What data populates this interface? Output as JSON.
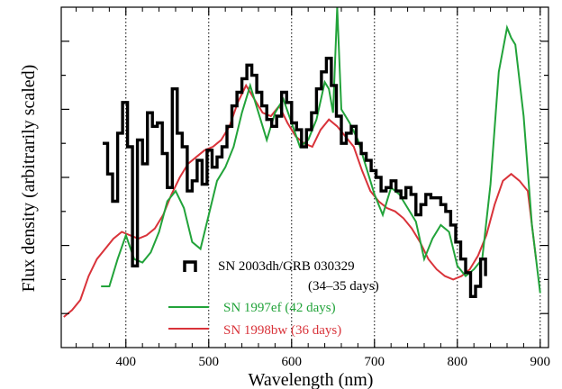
{
  "chart_data": {
    "type": "line",
    "title": "",
    "xlabel": "Wavelength (nm)",
    "ylabel": "Flux density (arbitrarily scaled)",
    "xlim": [
      322,
      910
    ],
    "ylim": [
      0,
      10
    ],
    "x_ticks": [
      400,
      500,
      600,
      700,
      800,
      900
    ],
    "x_tick_labels": [
      "400",
      "500",
      "600",
      "700",
      "800",
      "900"
    ],
    "y_tick_labels_shown": false,
    "grid": "vertical dotted lines at 400, 500, 600, 700, 800, 900",
    "legend_position": "bottom-center",
    "series": [
      {
        "name": "SN 2003dh/GRB 030329",
        "subtitle": "(34–35 days)",
        "color": "#000000",
        "style": "thick",
        "x": [
          372,
          378,
          384,
          390,
          396,
          402,
          408,
          414,
          420,
          426,
          432,
          438,
          444,
          450,
          456,
          462,
          468,
          474,
          480,
          486,
          492,
          498,
          504,
          510,
          516,
          522,
          528,
          534,
          540,
          546,
          552,
          558,
          564,
          570,
          576,
          582,
          588,
          594,
          600,
          606,
          612,
          618,
          624,
          630,
          636,
          642,
          648,
          654,
          660,
          666,
          672,
          678,
          684,
          690,
          696,
          702,
          708,
          714,
          720,
          726,
          732,
          738,
          744,
          750,
          756,
          762,
          768,
          774,
          780,
          786,
          792,
          798,
          804,
          810,
          816,
          822,
          828,
          834
        ],
        "y": [
          6.0,
          5.1,
          4.3,
          6.3,
          7.2,
          5.9,
          2.4,
          6.1,
          5.4,
          6.9,
          6.5,
          6.6,
          5.7,
          4.7,
          7.6,
          6.3,
          5.9,
          4.6,
          4.9,
          5.5,
          4.8,
          5.8,
          5.3,
          5.6,
          5.9,
          6.5,
          7.1,
          7.5,
          7.9,
          8.3,
          8.0,
          7.5,
          7.1,
          6.7,
          6.5,
          6.8,
          7.5,
          7.2,
          6.6,
          6.4,
          5.9,
          6.4,
          6.9,
          7.6,
          8.1,
          8.5,
          7.7,
          6.8,
          6.0,
          6.3,
          6.5,
          6.0,
          5.7,
          5.5,
          5.2,
          5.0,
          4.6,
          4.7,
          4.9,
          4.6,
          4.4,
          4.7,
          4.5,
          3.9,
          4.2,
          4.5,
          4.4,
          4.4,
          4.2,
          4.0,
          3.6,
          3.1,
          2.6,
          2.2,
          1.5,
          1.8,
          2.6,
          2.1
        ]
      },
      {
        "name": "SN 1997ef (42 days)",
        "color": "#22a33a",
        "x": [
          370,
          380,
          390,
          400,
          410,
          420,
          430,
          440,
          450,
          460,
          470,
          480,
          490,
          500,
          510,
          520,
          530,
          540,
          550,
          560,
          570,
          580,
          590,
          600,
          610,
          620,
          630,
          640,
          645,
          650,
          655,
          660,
          670,
          680,
          690,
          700,
          710,
          720,
          730,
          740,
          750,
          760,
          770,
          780,
          790,
          800,
          810,
          820,
          830,
          840,
          850,
          860,
          865,
          870,
          880,
          890,
          900
        ],
        "y": [
          1.8,
          1.8,
          2.6,
          3.3,
          2.6,
          2.5,
          2.8,
          3.4,
          4.3,
          4.6,
          4.1,
          3.1,
          2.9,
          3.9,
          4.9,
          5.3,
          5.9,
          6.9,
          7.7,
          6.9,
          6.1,
          6.9,
          7.3,
          6.6,
          5.9,
          6.1,
          6.7,
          7.8,
          7.6,
          6.9,
          10.0,
          7.0,
          6.6,
          6.1,
          5.3,
          4.5,
          3.9,
          4.7,
          4.5,
          4.1,
          3.7,
          2.6,
          3.2,
          3.6,
          3.4,
          2.4,
          2.1,
          2.3,
          2.6,
          4.8,
          8.1,
          9.4,
          9.1,
          8.9,
          6.8,
          3.6,
          1.6
        ]
      },
      {
        "name": "SN 1998bw (36 days)",
        "color": "#d9333a",
        "x": [
          325,
          335,
          345,
          355,
          365,
          375,
          385,
          395,
          405,
          415,
          425,
          435,
          445,
          455,
          465,
          475,
          485,
          495,
          505,
          515,
          525,
          535,
          545,
          555,
          565,
          575,
          585,
          595,
          605,
          615,
          625,
          635,
          645,
          655,
          665,
          675,
          685,
          695,
          705,
          715,
          725,
          735,
          745,
          755,
          765,
          775,
          785,
          795,
          805,
          815,
          825,
          835,
          845,
          855,
          865,
          875,
          885,
          895
        ],
        "y": [
          0.9,
          1.1,
          1.4,
          2.1,
          2.6,
          2.9,
          3.2,
          3.4,
          3.3,
          3.2,
          3.3,
          3.5,
          3.9,
          4.5,
          5.0,
          5.4,
          5.6,
          5.8,
          5.9,
          6.1,
          6.5,
          7.2,
          7.7,
          7.3,
          6.9,
          6.8,
          7.1,
          6.6,
          6.2,
          6.0,
          5.9,
          6.4,
          6.7,
          6.5,
          6.2,
          5.9,
          5.2,
          4.6,
          4.3,
          4.1,
          4.0,
          3.8,
          3.5,
          3.1,
          2.6,
          2.3,
          2.1,
          2.0,
          2.1,
          2.3,
          2.7,
          3.3,
          4.2,
          4.9,
          5.1,
          4.9,
          4.6,
          2.6
        ]
      }
    ]
  }
}
